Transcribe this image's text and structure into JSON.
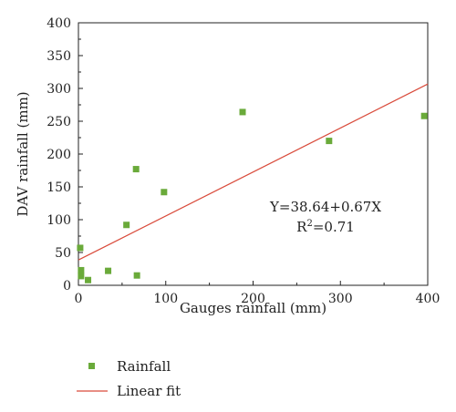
{
  "chart_data": {
    "type": "scatter",
    "xlabel": "Gauges rainfall (mm)",
    "ylabel": "DAV rainfall (mm)",
    "xlim": [
      0,
      400
    ],
    "ylim": [
      0,
      400
    ],
    "xticks": [
      0,
      100,
      200,
      300,
      400
    ],
    "yticks": [
      0,
      50,
      100,
      150,
      200,
      250,
      300,
      350,
      400
    ],
    "grid": false,
    "legend_position": "bottom-left",
    "series": [
      {
        "name": "Rainfall",
        "marker": "square",
        "color": "#6aaa3a",
        "x": [
          2,
          3,
          3,
          11,
          34,
          55,
          66,
          67,
          98,
          188,
          287,
          396
        ],
        "y": [
          57,
          23,
          14,
          8,
          22,
          92,
          177,
          15,
          142,
          264,
          220,
          258
        ]
      },
      {
        "name": "Linear fit",
        "type": "line",
        "color": "#d94a3a",
        "intercept": 38.64,
        "slope": 0.67,
        "x_range": [
          0,
          400
        ]
      }
    ],
    "annotations": {
      "equation": "Y=38.64+0.67X",
      "r2_prefix": "R",
      "r2_sup": "2",
      "r2_value": "=0.71"
    }
  }
}
